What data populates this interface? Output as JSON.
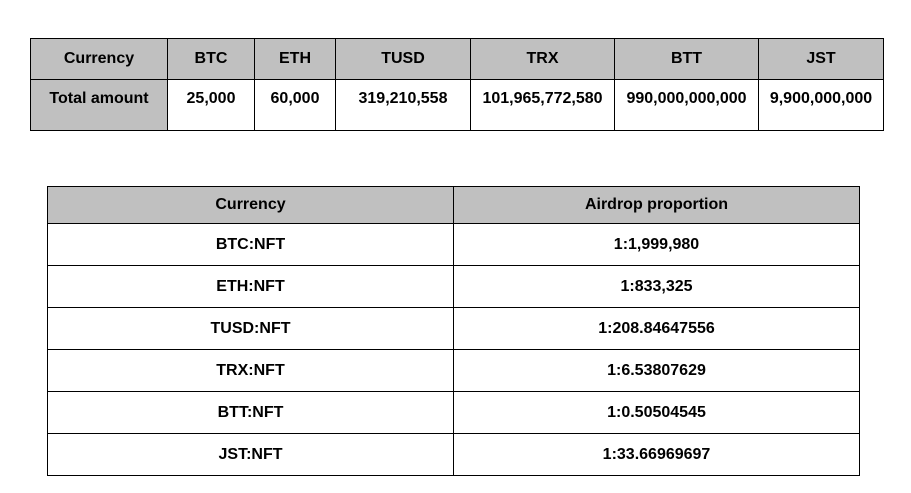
{
  "totals": {
    "header": [
      "Currency",
      "BTC",
      "ETH",
      "TUSD",
      "TRX",
      "BTT",
      "JST"
    ],
    "row": [
      "Total amount",
      "25,000",
      "60,000",
      "319,210,558",
      "101,965,772,580",
      "990,000,000,000",
      "9,900,000,000"
    ]
  },
  "airdrop": {
    "header": [
      "Currency",
      "Airdrop proportion"
    ],
    "rows": [
      [
        "BTC:NFT",
        "1:1,999,980"
      ],
      [
        "ETH:NFT",
        "1:833,325"
      ],
      [
        "TUSD:NFT",
        "1:208.84647556"
      ],
      [
        "TRX:NFT",
        "1:6.53807629"
      ],
      [
        "BTT:NFT",
        "1:0.50504545"
      ],
      [
        "JST:NFT",
        "1:33.66969697"
      ]
    ]
  },
  "colors": {
    "header_bg": "#c0c0c0",
    "border": "#000000",
    "text": "#000000"
  }
}
